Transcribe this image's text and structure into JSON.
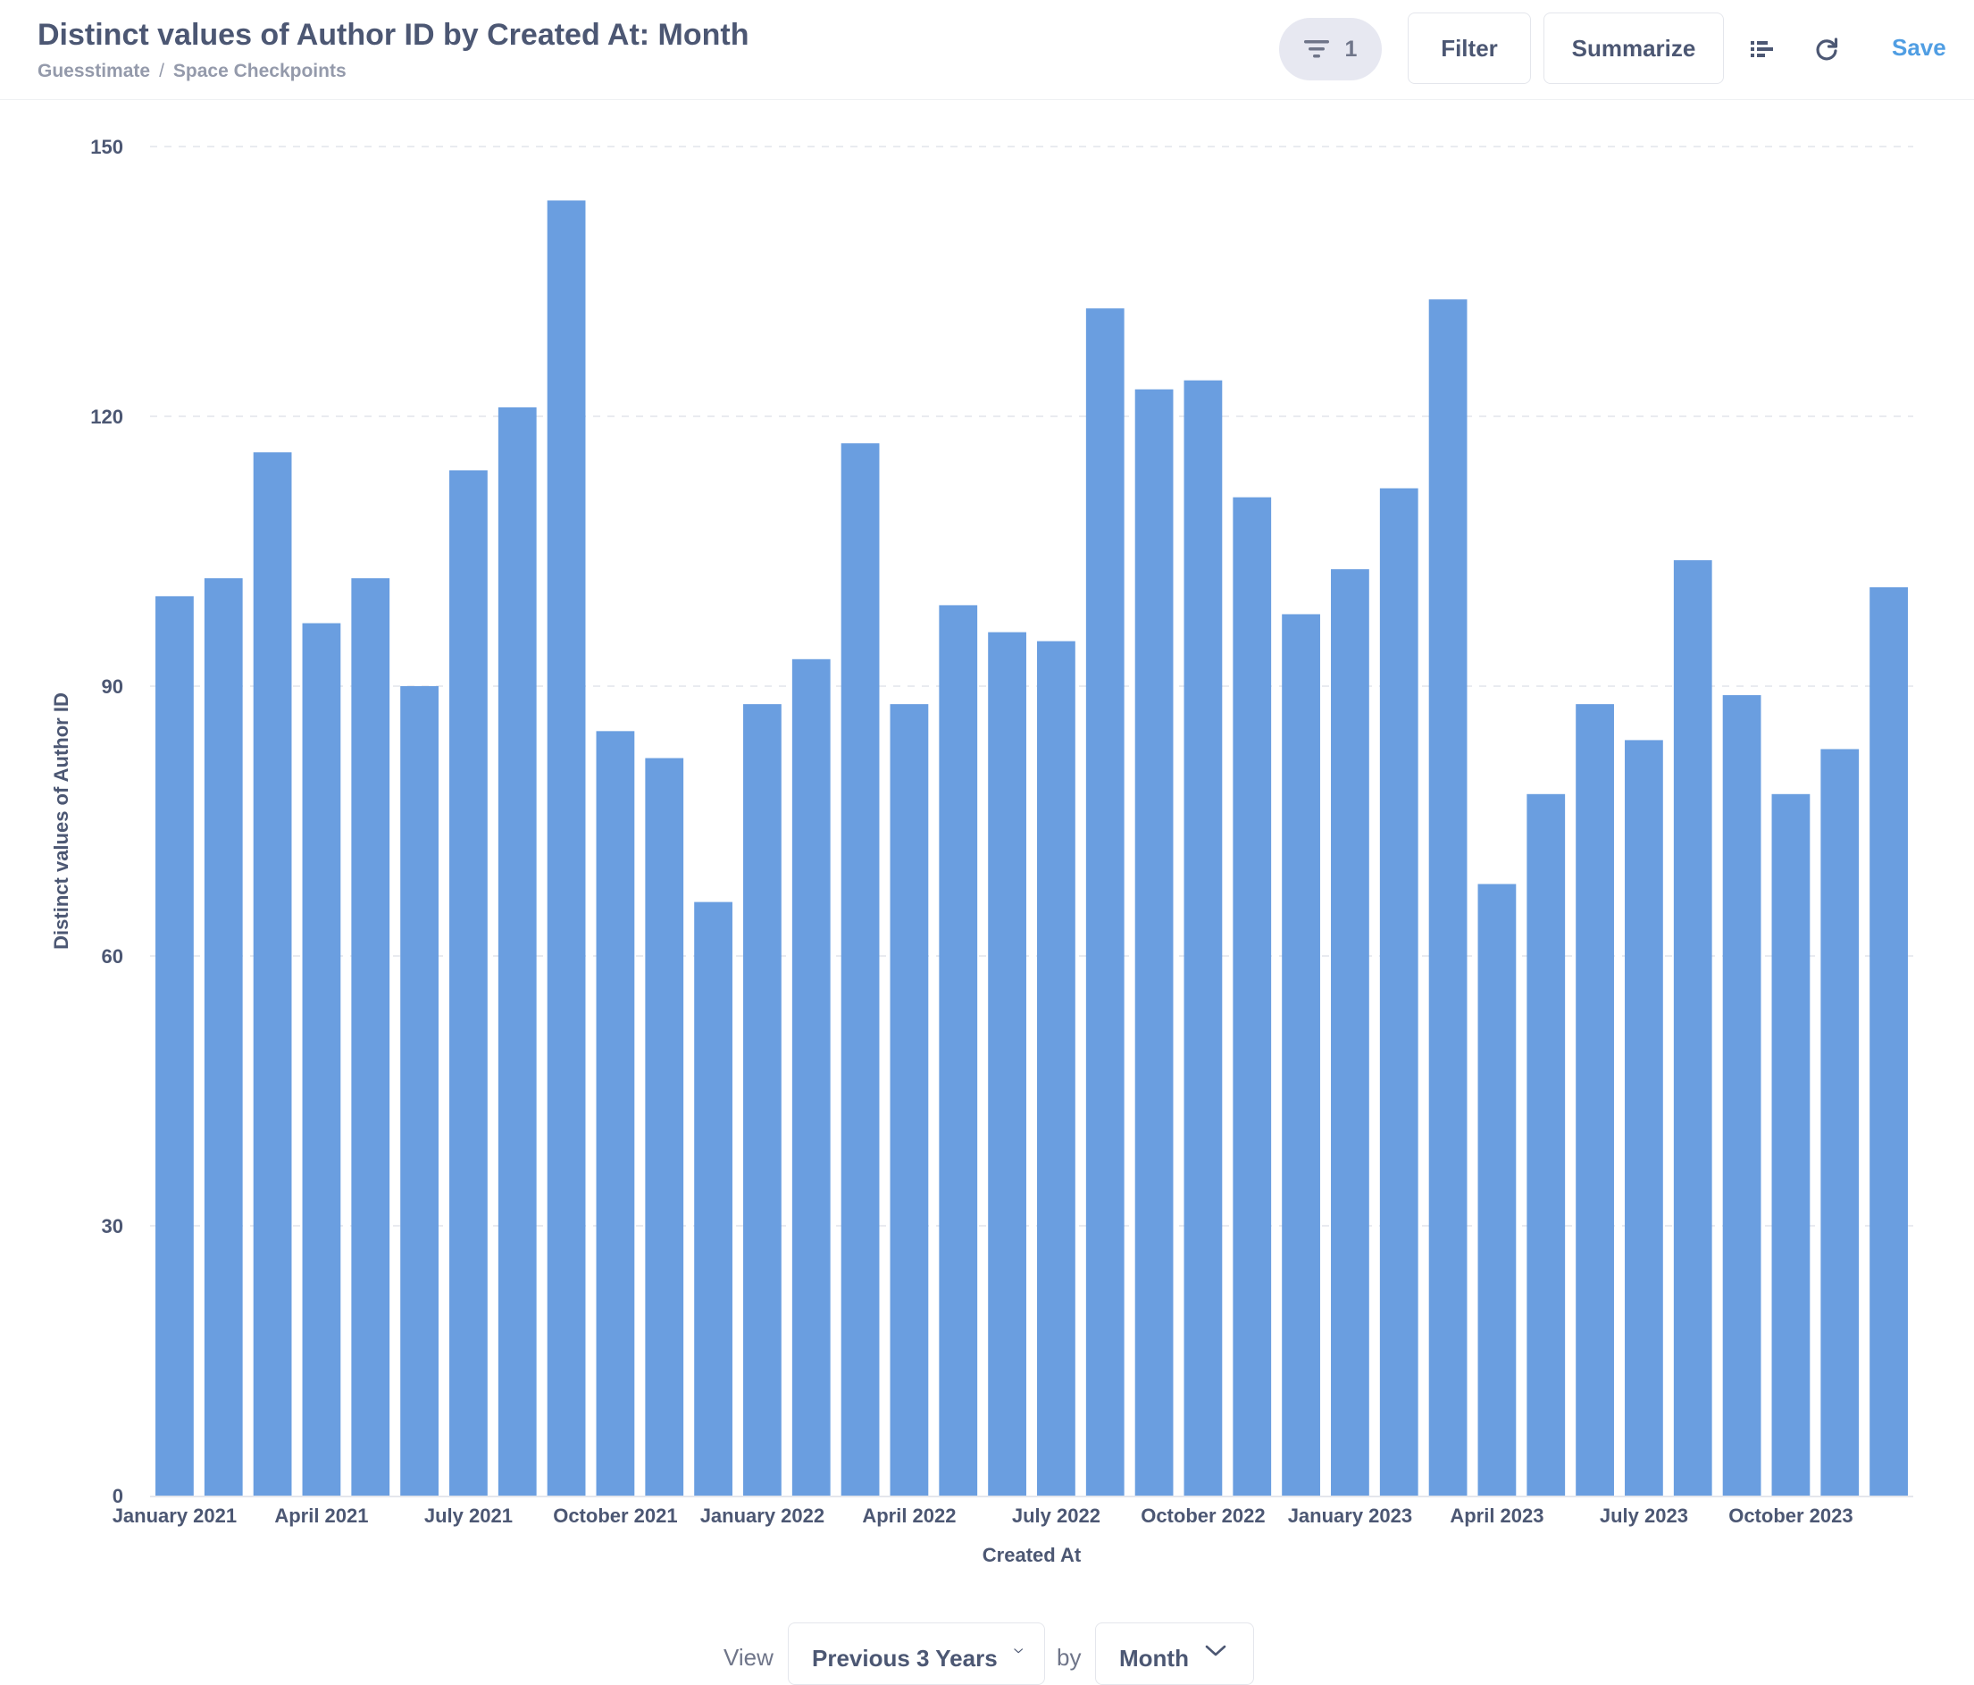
{
  "header": {
    "title": "Distinct values of Author ID by Created At: Month",
    "breadcrumb": [
      "Guesstimate",
      "Space Checkpoints"
    ],
    "filter_count": "1",
    "filter_label": "Filter",
    "summarize_label": "Summarize",
    "save_label": "Save"
  },
  "colors": {
    "bar": "#6a9ee0",
    "accent": "#509ee3",
    "text": "#4c5773",
    "grid": "#e9ebf0"
  },
  "icons": {
    "filter_pill": "filter-funnel-icon",
    "list": "bulleted-list-icon",
    "refresh": "refresh-icon",
    "chevron": "chevron-down-icon"
  },
  "chart_data": {
    "type": "bar",
    "xlabel": "Created At",
    "ylabel": "Distinct values of Author ID",
    "ylim": [
      0,
      150
    ],
    "yticks": [
      0,
      30,
      60,
      90,
      120,
      150
    ],
    "grid": true,
    "categories": [
      "January 2021",
      "February 2021",
      "March 2021",
      "April 2021",
      "May 2021",
      "June 2021",
      "July 2021",
      "August 2021",
      "September 2021",
      "October 2021",
      "November 2021",
      "December 2021",
      "January 2022",
      "February 2022",
      "March 2022",
      "April 2022",
      "May 2022",
      "June 2022",
      "July 2022",
      "August 2022",
      "September 2022",
      "October 2022",
      "November 2022",
      "December 2022",
      "January 2023",
      "February 2023",
      "March 2023",
      "April 2023",
      "May 2023",
      "June 2023",
      "July 2023",
      "August 2023",
      "September 2023",
      "October 2023",
      "November 2023",
      "December 2023"
    ],
    "values": [
      100,
      102,
      116,
      97,
      102,
      90,
      114,
      121,
      144,
      85,
      82,
      66,
      88,
      93,
      117,
      88,
      99,
      96,
      95,
      132,
      123,
      124,
      111,
      98,
      103,
      112,
      133,
      68,
      78,
      88,
      84,
      104,
      89,
      78,
      83,
      101
    ],
    "x_tick_labels": [
      {
        "index": 0,
        "label": "January 2021"
      },
      {
        "index": 3,
        "label": "April 2021"
      },
      {
        "index": 6,
        "label": "July 2021"
      },
      {
        "index": 9,
        "label": "October 2021"
      },
      {
        "index": 12,
        "label": "January 2022"
      },
      {
        "index": 15,
        "label": "April 2022"
      },
      {
        "index": 18,
        "label": "July 2022"
      },
      {
        "index": 21,
        "label": "October 2022"
      },
      {
        "index": 24,
        "label": "January 2023"
      },
      {
        "index": 27,
        "label": "April 2023"
      },
      {
        "index": 30,
        "label": "July 2023"
      },
      {
        "index": 33,
        "label": "October 2023"
      }
    ]
  },
  "footer": {
    "view_label": "View",
    "range_value": "Previous 3 Years",
    "by_label": "by",
    "unit_value": "Month"
  }
}
